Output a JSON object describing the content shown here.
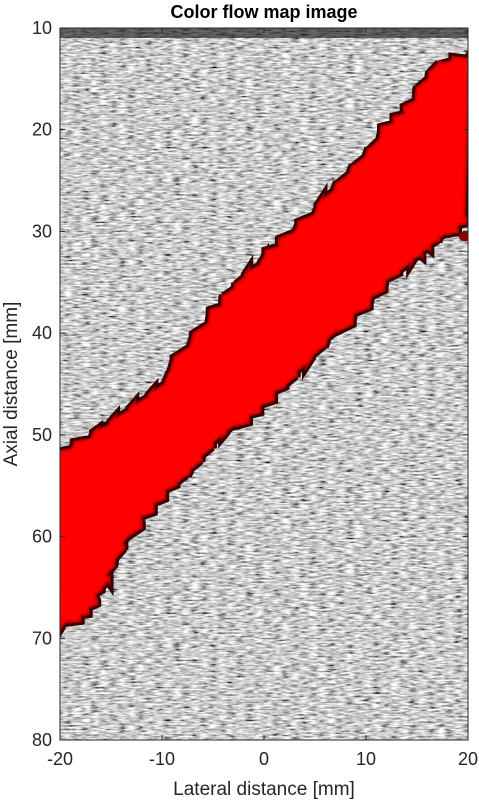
{
  "chart_data": {
    "type": "heatmap",
    "title": "Color flow map image",
    "xlabel": "Lateral distance [mm]",
    "ylabel": "Axial distance [mm]",
    "xlim": [
      -20,
      20
    ],
    "ylim": [
      80,
      10
    ],
    "y_axis_direction": "down",
    "xticks": [
      -20,
      -10,
      0,
      10,
      20
    ],
    "yticks": [
      10,
      20,
      30,
      40,
      50,
      60,
      70,
      80
    ],
    "xtick_labels": [
      "-20",
      "-10",
      "0",
      "10",
      "20"
    ],
    "ytick_labels": [
      "10",
      "20",
      "30",
      "40",
      "50",
      "60",
      "70",
      "80"
    ],
    "grid": false,
    "legend": "none",
    "background_layer": "grayscale B-mode speckle",
    "flow_layer": {
      "color": "#ff0000",
      "edge_color": "#3a0000",
      "upper_edge": [
        {
          "x": -20,
          "y": 52
        },
        {
          "x": -15,
          "y": 49
        },
        {
          "x": -10,
          "y": 45
        },
        {
          "x": -5,
          "y": 38
        },
        {
          "x": -2,
          "y": 34.5
        },
        {
          "x": 2,
          "y": 31
        },
        {
          "x": 7,
          "y": 26
        },
        {
          "x": 11,
          "y": 21
        },
        {
          "x": 14,
          "y": 18
        },
        {
          "x": 17,
          "y": 13.5
        },
        {
          "x": 20,
          "y": 13
        }
      ],
      "lower_edge": [
        {
          "x": 20,
          "y": 28.5
        },
        {
          "x": 17,
          "y": 31
        },
        {
          "x": 14,
          "y": 33
        },
        {
          "x": 9,
          "y": 38
        },
        {
          "x": 4,
          "y": 43
        },
        {
          "x": 0,
          "y": 47
        },
        {
          "x": -4,
          "y": 50
        },
        {
          "x": -8,
          "y": 54
        },
        {
          "x": -12,
          "y": 58
        },
        {
          "x": -15,
          "y": 63
        },
        {
          "x": -17,
          "y": 67
        },
        {
          "x": -20,
          "y": 69
        }
      ],
      "blob": {
        "x": 19.7,
        "y": 30.5
      }
    }
  }
}
